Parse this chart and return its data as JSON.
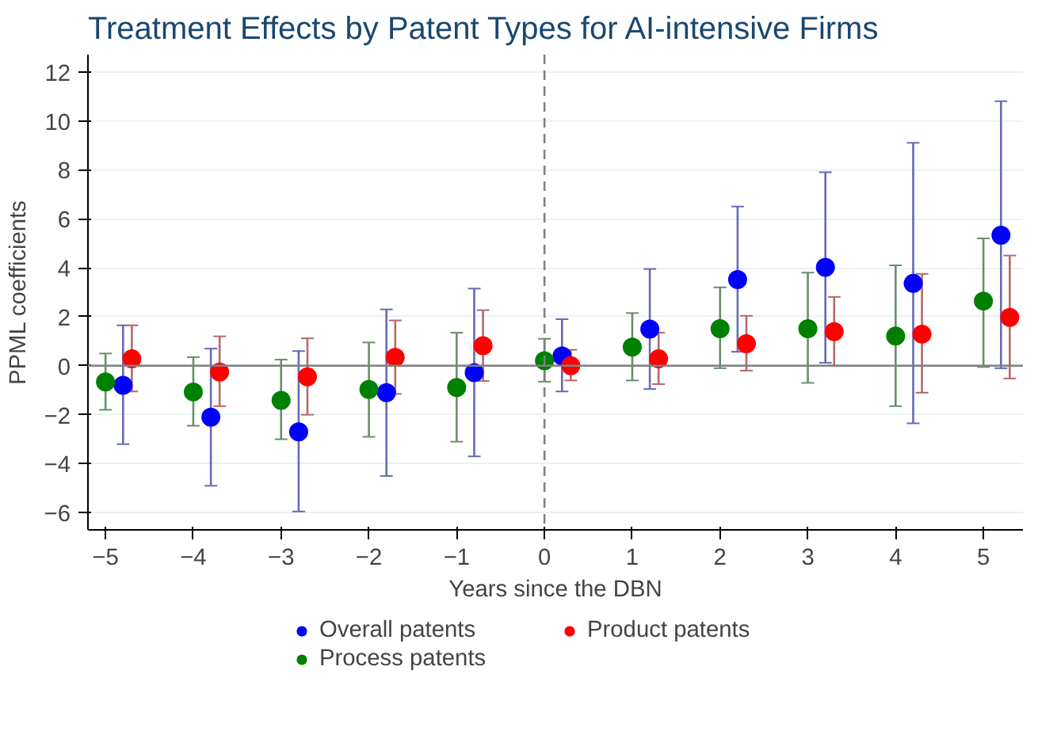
{
  "chart_data": {
    "type": "scatter",
    "title": "Treatment Effects by Patent Types for AI-intensive Firms",
    "xlabel": "Years since the DBN",
    "ylabel": "PPML coefficients",
    "xlim": [
      -5.2,
      5.45
    ],
    "xticks": [
      -5,
      -4,
      -3,
      -2,
      -1,
      0,
      1,
      2,
      3,
      4,
      5
    ],
    "ylim": [
      -6.7,
      12.7
    ],
    "yticks": [
      -6,
      -4,
      -2,
      0,
      2,
      4,
      6,
      8,
      10,
      12
    ],
    "grid": "y",
    "legend": "bottom",
    "marker": "circle",
    "ref_lines": [
      {
        "axis": "y",
        "value": 0,
        "color": "#808080",
        "line_style": "solid"
      },
      {
        "axis": "x",
        "value": 0,
        "color": "#808080",
        "line_style": "dashed"
      }
    ],
    "series": [
      {
        "name": "Overall patents",
        "color": "#0000ff",
        "x": [
          -4.8,
          -3.8,
          -2.8,
          -1.8,
          -0.8,
          0.2,
          1.2,
          2.2,
          3.2,
          4.2,
          5.2
        ],
        "values": [
          -0.8,
          -2.1,
          -2.7,
          -1.1,
          -0.28,
          0.4,
          1.5,
          3.52,
          4.02,
          3.36,
          5.33
        ],
        "errors": [
          [
            -3.2,
            1.65
          ],
          [
            -4.9,
            0.7
          ],
          [
            -5.95,
            0.6
          ],
          [
            -4.5,
            2.3
          ],
          [
            -3.7,
            3.15
          ],
          [
            -1.05,
            1.9
          ],
          [
            -0.95,
            3.95
          ],
          [
            0.57,
            6.5
          ],
          [
            0.12,
            7.9
          ],
          [
            -2.35,
            9.1
          ],
          [
            -0.1,
            10.8
          ]
        ]
      },
      {
        "name": "Product patents",
        "color": "#ff0000",
        "x": [
          -4.7,
          -3.7,
          -2.7,
          -1.7,
          -0.7,
          0.3,
          1.3,
          2.3,
          3.3,
          4.3,
          5.3
        ],
        "values": [
          0.28,
          -0.26,
          -0.45,
          0.34,
          0.82,
          0.0,
          0.28,
          0.9,
          1.39,
          1.29,
          1.97
        ],
        "errors": [
          [
            -1.05,
            1.65
          ],
          [
            -1.65,
            1.2
          ],
          [
            -2.0,
            1.12
          ],
          [
            -1.15,
            1.85
          ],
          [
            -0.62,
            2.27
          ],
          [
            -0.6,
            0.65
          ],
          [
            -0.75,
            1.35
          ],
          [
            -0.2,
            2.04
          ],
          [
            0.0,
            2.81
          ],
          [
            -1.1,
            3.75
          ],
          [
            -0.52,
            4.5
          ]
        ]
      },
      {
        "name": "Process patents",
        "color": "#008000",
        "x": [
          -5,
          -4,
          -3,
          -2,
          -1,
          0,
          1,
          2,
          3,
          4,
          5
        ],
        "values": [
          -0.66,
          -1.07,
          -1.41,
          -0.97,
          -0.89,
          0.2,
          0.76,
          1.51,
          1.51,
          1.21,
          2.64
        ],
        "errors": [
          [
            -1.8,
            0.5
          ],
          [
            -2.45,
            0.35
          ],
          [
            -3.0,
            0.25
          ],
          [
            -2.9,
            0.95
          ],
          [
            -3.1,
            1.35
          ],
          [
            -0.65,
            1.1
          ],
          [
            -0.6,
            2.15
          ],
          [
            -0.1,
            3.2
          ],
          [
            -0.7,
            3.8
          ],
          [
            -1.65,
            4.1
          ],
          [
            -0.05,
            5.2
          ]
        ]
      }
    ]
  }
}
